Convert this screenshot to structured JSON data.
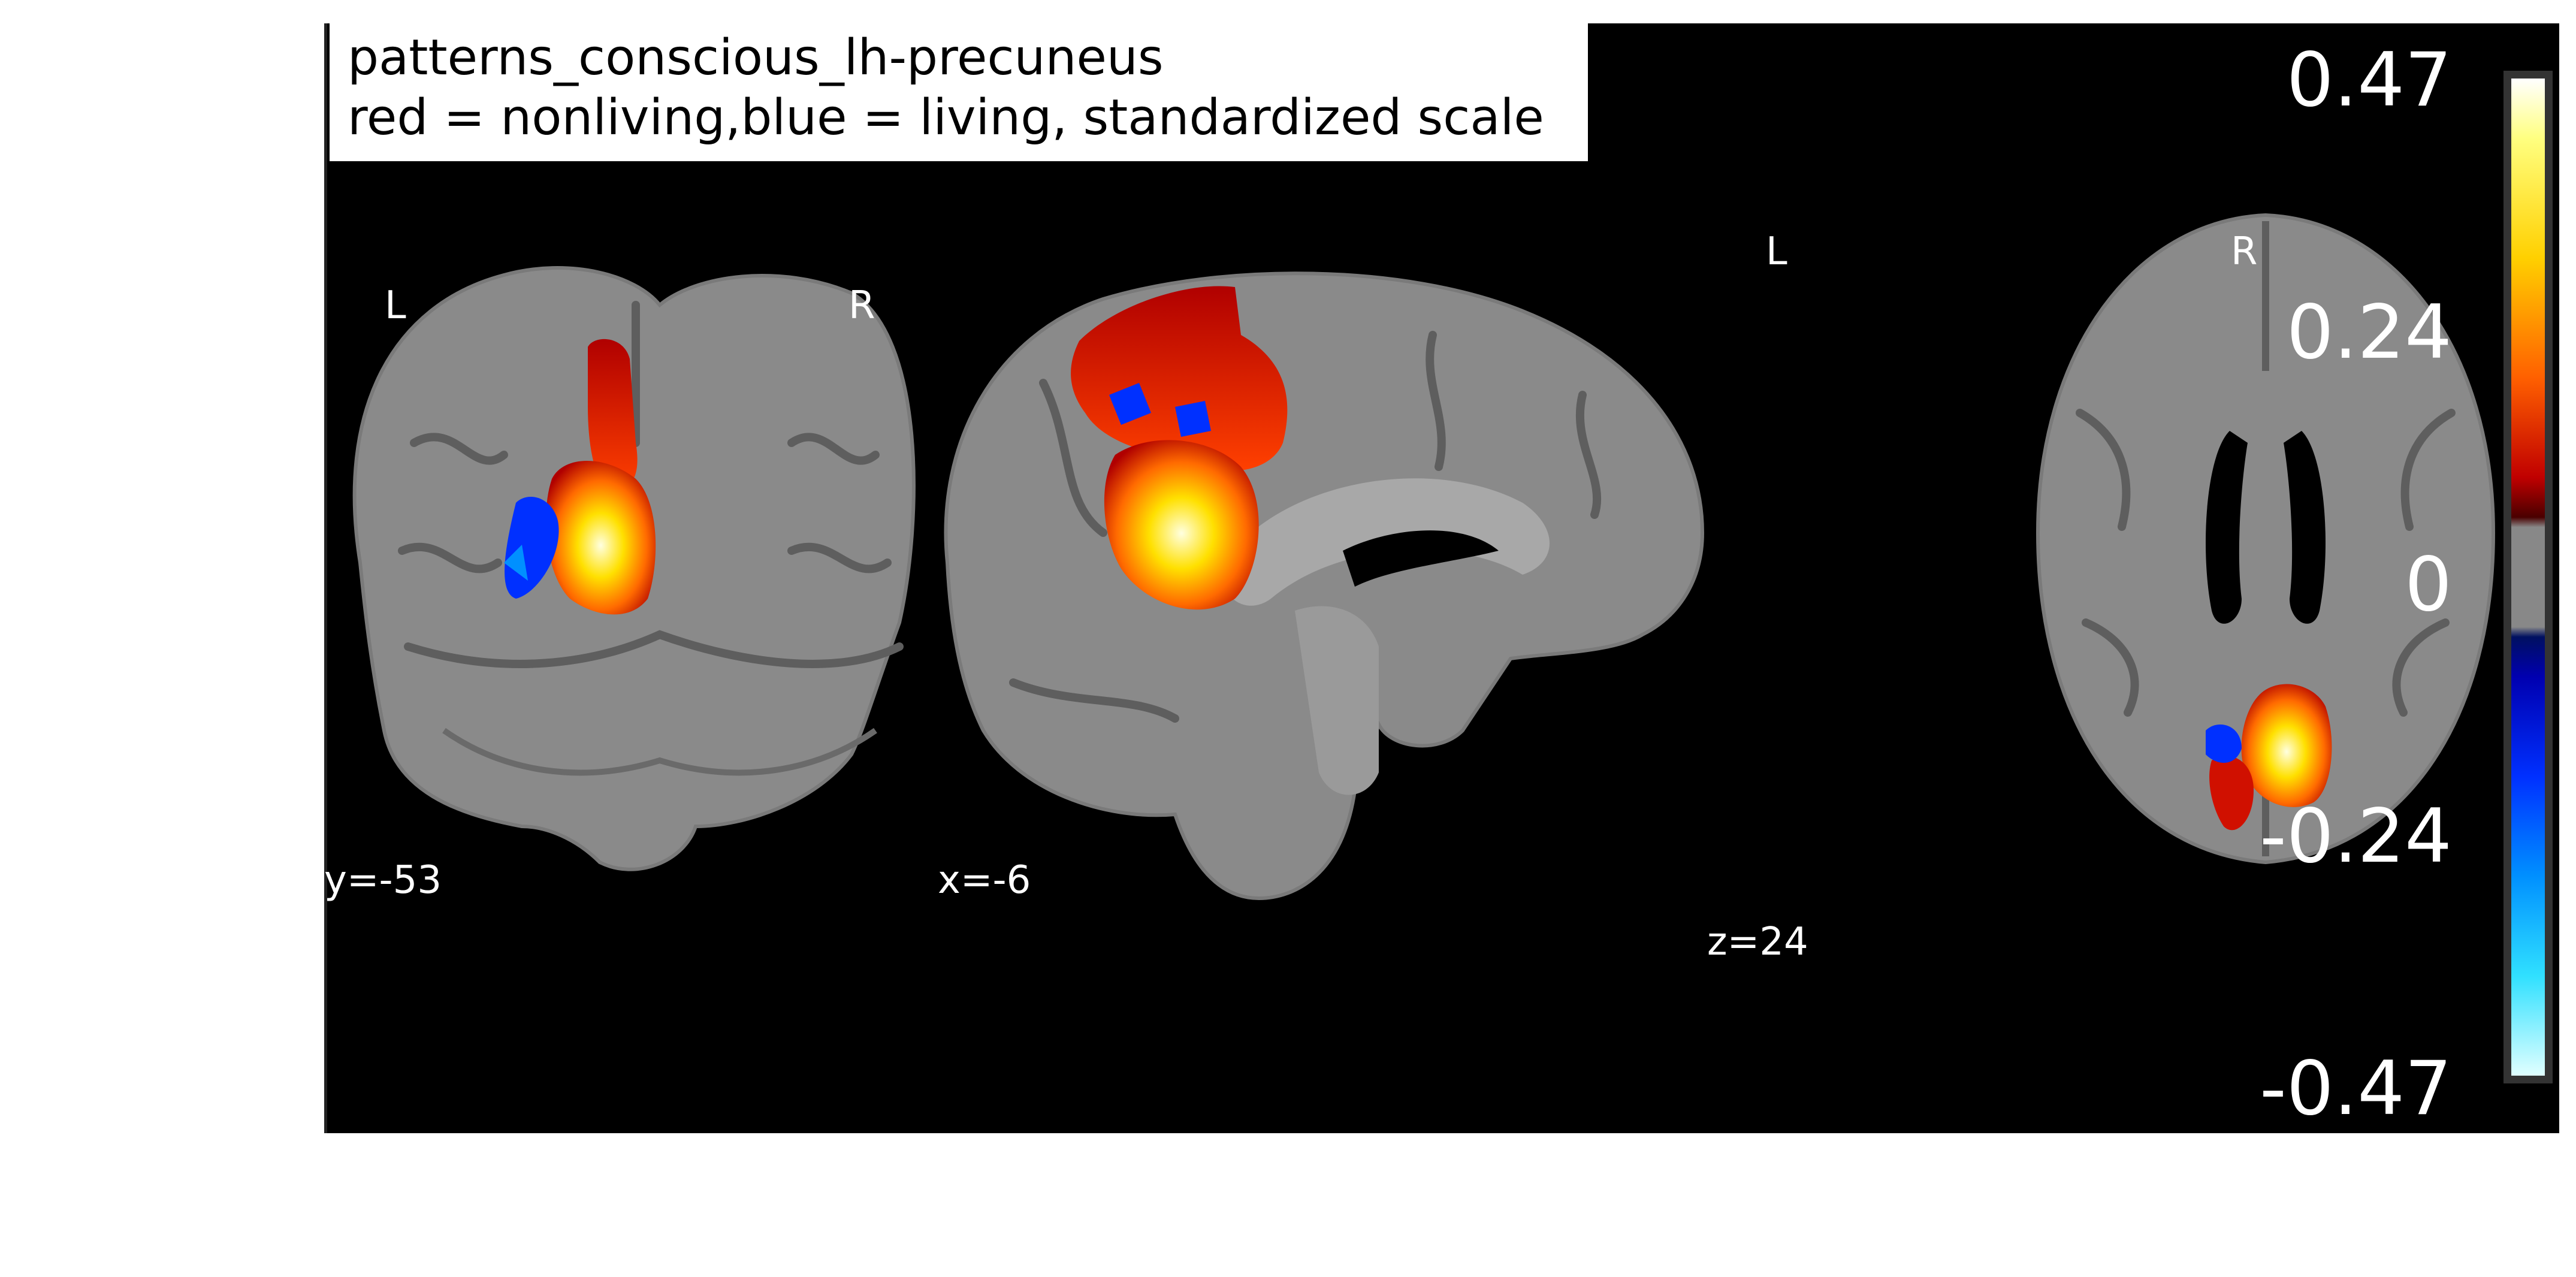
{
  "figure": {
    "title_line_1": "patterns_conscious_lh-precuneus",
    "title_line_2": "red = nonliving,blue = living, standardized scale"
  },
  "views": {
    "coronal": {
      "left_label": "L",
      "right_label": "R",
      "coord_label": "y=-53"
    },
    "sagittal": {
      "coord_label": "x=-6"
    },
    "axial": {
      "left_label": "L",
      "right_label": "R",
      "coord_label": "z=24"
    }
  },
  "colorbar": {
    "ticks": [
      "0.47",
      "0.24",
      "0",
      "-0.24",
      "-0.47"
    ],
    "min": -0.47,
    "max": 0.47,
    "colors": {
      "hot": "#ffd000",
      "cold": "#0030ff",
      "mid": "#888888"
    }
  }
}
